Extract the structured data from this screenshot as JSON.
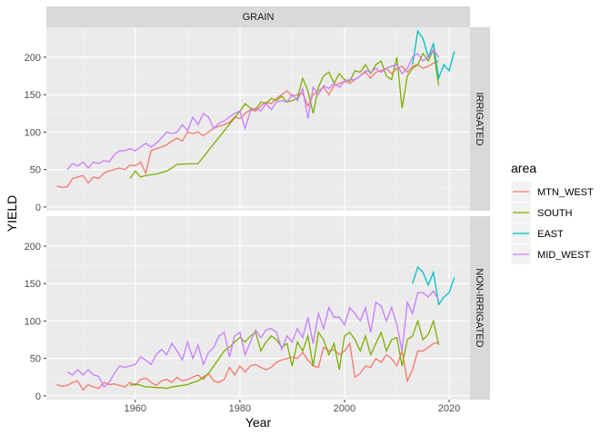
{
  "chart_data": {
    "type": "line",
    "facet_column": "GRAIN",
    "facet_rows": [
      "IRRIGATED",
      "NON-IRRIGATED"
    ],
    "xlabel": "Year",
    "ylabel": "YIELD",
    "xlim": [
      1943,
      2024
    ],
    "ylim": [
      -5,
      240
    ],
    "x_ticks": [
      1960,
      1980,
      2000,
      2020
    ],
    "y_ticks": [
      0,
      50,
      100,
      150,
      200
    ],
    "grid": true,
    "legend_title": "area",
    "legend_position": "right",
    "series_names": [
      "MTN_WEST",
      "SOUTH",
      "EAST",
      "MID_WEST"
    ],
    "colors": {
      "MTN_WEST": "#F8766D",
      "SOUTH": "#7CAE00",
      "EAST": "#00BFC4",
      "MID_WEST": "#C77CFF"
    },
    "panels": [
      {
        "row": "IRRIGATED",
        "series": [
          {
            "name": "MTN_WEST",
            "x": [
              1945,
              1946,
              1947,
              1948,
              1949,
              1950,
              1951,
              1952,
              1953,
              1954,
              1955,
              1956,
              1957,
              1958,
              1959,
              1960,
              1961,
              1962,
              1963,
              1964,
              1965,
              1966,
              1967,
              1968,
              1969,
              1970,
              1971,
              1972,
              1973,
              1974,
              1975,
              1976,
              1977,
              1978,
              1979,
              1980,
              1981,
              1982,
              1983,
              1984,
              1985,
              1986,
              1987,
              1988,
              1989,
              1990,
              1991,
              1992,
              1993,
              1994,
              1995,
              1996,
              1997,
              1998,
              1999,
              2000,
              2001,
              2002,
              2003,
              2004,
              2005,
              2006,
              2007,
              2008,
              2009,
              2010,
              2011,
              2012,
              2013,
              2014,
              2015,
              2016,
              2017,
              2018
            ],
            "y": [
              28,
              26,
              27,
              38,
              40,
              42,
              32,
              40,
              38,
              45,
              48,
              50,
              52,
              50,
              56,
              55,
              60,
              45,
              75,
              78,
              80,
              83,
              88,
              92,
              88,
              100,
              98,
              100,
              95,
              100,
              105,
              108,
              110,
              113,
              120,
              118,
              125,
              130,
              128,
              135,
              140,
              138,
              145,
              150,
              155,
              148,
              150,
              152,
              135,
              150,
              155,
              160,
              150,
              162,
              165,
              168,
              165,
              170,
              175,
              180,
              172,
              180,
              182,
              185,
              178,
              185,
              188,
              180,
              188,
              190,
              185,
              188,
              192,
              195
            ]
          },
          {
            "name": "SOUTH",
            "x": [
              1959,
              1960,
              1961,
              1962,
              1963,
              1964,
              1965,
              1966,
              1967,
              1968,
              1972,
              1980,
              1981,
              1982,
              1983,
              1984,
              1985,
              1986,
              1987,
              1988,
              1989,
              1990,
              1991,
              1992,
              1993,
              1994,
              1995,
              1996,
              1997,
              1998,
              1999,
              2000,
              2001,
              2002,
              2003,
              2004,
              2005,
              2006,
              2007,
              2008,
              2009,
              2010,
              2011,
              2012,
              2013,
              2014,
              2015,
              2016,
              2017,
              2018
            ],
            "y": [
              38,
              48,
              40,
              42,
              43,
              44,
              46,
              48,
              52,
              57,
              58,
              128,
              138,
              132,
              130,
              140,
              138,
              145,
              142,
              148,
              140,
              142,
              145,
              172,
              155,
              125,
              160,
              175,
              180,
              165,
              178,
              170,
              168,
              182,
              180,
              190,
              178,
              190,
              195,
              175,
              170,
              200,
              132,
              175,
              185,
              190,
              205,
              195,
              210,
              162
            ]
          },
          {
            "name": "EAST",
            "x": [
              2013,
              2014,
              2015,
              2016,
              2017,
              2018,
              2019,
              2020,
              2021
            ],
            "y": [
              190,
              235,
              225,
              200,
              218,
              172,
              190,
              182,
              208
            ]
          },
          {
            "name": "MID_WEST",
            "x": [
              1947,
              1948,
              1949,
              1950,
              1951,
              1952,
              1953,
              1954,
              1955,
              1956,
              1957,
              1958,
              1959,
              1960,
              1961,
              1962,
              1963,
              1964,
              1965,
              1966,
              1967,
              1968,
              1969,
              1970,
              1971,
              1972,
              1973,
              1974,
              1975,
              1976,
              1977,
              1978,
              1979,
              1980,
              1981,
              1982,
              1983,
              1984,
              1985,
              1986,
              1987,
              1988,
              1989,
              1990,
              1991,
              1992,
              1993,
              1994,
              1995,
              1996,
              1997,
              1998,
              1999,
              2000,
              2001,
              2002,
              2003,
              2004,
              2005,
              2006,
              2007,
              2008,
              2009,
              2010,
              2011,
              2012,
              2013,
              2014,
              2015,
              2016,
              2017,
              2018
            ],
            "y": [
              50,
              58,
              55,
              60,
              52,
              60,
              58,
              62,
              60,
              70,
              75,
              75,
              78,
              75,
              80,
              85,
              80,
              85,
              92,
              100,
              98,
              100,
              110,
              102,
              120,
              110,
              125,
              120,
              105,
              112,
              115,
              120,
              125,
              128,
              105,
              128,
              132,
              128,
              138,
              130,
              140,
              142,
              140,
              150,
              142,
              158,
              118,
              160,
              150,
              162,
              158,
              165,
              160,
              168,
              170,
              170,
              175,
              182,
              180,
              185,
              180,
              185,
              188,
              190,
              178,
              185,
              200,
              205,
              195,
              200,
              210,
              200
            ]
          }
        ]
      },
      {
        "row": "NON-IRRIGATED",
        "series": [
          {
            "name": "MTN_WEST",
            "x": [
              1945,
              1946,
              1947,
              1948,
              1949,
              1950,
              1951,
              1952,
              1953,
              1954,
              1955,
              1956,
              1957,
              1958,
              1959,
              1960,
              1961,
              1962,
              1963,
              1964,
              1965,
              1966,
              1967,
              1968,
              1969,
              1970,
              1971,
              1972,
              1973,
              1974,
              1975,
              1976,
              1977,
              1978,
              1979,
              1980,
              1981,
              1982,
              1983,
              1984,
              1985,
              1986,
              1987,
              1988,
              1989,
              1990,
              1991,
              1992,
              1993,
              1994,
              1995,
              1996,
              1997,
              1998,
              1999,
              2000,
              2001,
              2002,
              2003,
              2004,
              2005,
              2006,
              2007,
              2008,
              2009,
              2010,
              2011,
              2012,
              2013,
              2014,
              2015,
              2016,
              2017,
              2018
            ],
            "y": [
              15,
              13,
              14,
              18,
              20,
              8,
              15,
              12,
              10,
              18,
              15,
              16,
              14,
              12,
              18,
              14,
              22,
              24,
              18,
              14,
              20,
              22,
              18,
              25,
              20,
              22,
              25,
              28,
              22,
              30,
              20,
              18,
              22,
              38,
              28,
              40,
              32,
              40,
              42,
              38,
              35,
              38,
              45,
              48,
              50,
              52,
              50,
              58,
              48,
              40,
              38,
              65,
              60,
              62,
              55,
              60,
              70,
              25,
              30,
              40,
              38,
              50,
              45,
              55,
              50,
              40,
              60,
              20,
              35,
              60,
              60,
              65,
              70,
              72
            ]
          },
          {
            "name": "SOUTH",
            "x": [
              1959,
              1960,
              1961,
              1962,
              1963,
              1964,
              1965,
              1966,
              1967,
              1968,
              1969,
              1970,
              1971,
              1972,
              1973,
              1974,
              1975,
              1976,
              1977,
              1978,
              1979,
              1980,
              1981,
              1982,
              1983,
              1984,
              1985,
              1986,
              1987,
              1988,
              1989,
              1990,
              1991,
              1992,
              1993,
              1994,
              1995,
              1996,
              1997,
              1998,
              1999,
              2000,
              2001,
              2002,
              2003,
              2004,
              2005,
              2006,
              2007,
              2008,
              2009,
              2010,
              2011,
              2012,
              2013,
              2014,
              2015,
              2016,
              2017,
              2018
            ],
            "y": [
              14,
              16,
              14,
              12,
              12,
              11,
              11,
              10,
              12,
              13,
              14,
              15,
              18,
              20,
              25,
              30,
              40,
              50,
              60,
              65,
              72,
              78,
              72,
              80,
              85,
              60,
              72,
              80,
              75,
              65,
              70,
              40,
              72,
              60,
              80,
              40,
              85,
              75,
              55,
              70,
              35,
              80,
              85,
              75,
              60,
              80,
              55,
              70,
              85,
              60,
              75,
              78,
              40,
              75,
              80,
              100,
              75,
              82,
              100,
              68
            ]
          },
          {
            "name": "EAST",
            "x": [
              2013,
              2014,
              2015,
              2016,
              2017,
              2018,
              2019,
              2020,
              2021
            ],
            "y": [
              150,
              172,
              165,
              148,
              165,
              122,
              132,
              138,
              158
            ]
          },
          {
            "name": "MID_WEST",
            "x": [
              1947,
              1948,
              1949,
              1950,
              1951,
              1952,
              1953,
              1954,
              1955,
              1956,
              1957,
              1958,
              1959,
              1960,
              1961,
              1962,
              1963,
              1964,
              1965,
              1966,
              1967,
              1968,
              1969,
              1970,
              1971,
              1972,
              1973,
              1974,
              1975,
              1976,
              1977,
              1978,
              1979,
              1980,
              1981,
              1982,
              1983,
              1984,
              1985,
              1986,
              1987,
              1988,
              1989,
              1990,
              1991,
              1992,
              1993,
              1994,
              1995,
              1996,
              1997,
              1998,
              1999,
              2000,
              2001,
              2002,
              2003,
              2004,
              2005,
              2006,
              2007,
              2008,
              2009,
              2010,
              2011,
              2012,
              2013,
              2014,
              2015,
              2016,
              2017,
              2018
            ],
            "y": [
              32,
              28,
              35,
              28,
              35,
              28,
              26,
              12,
              18,
              30,
              40,
              38,
              40,
              42,
              52,
              48,
              42,
              55,
              62,
              55,
              70,
              60,
              48,
              72,
              50,
              68,
              42,
              58,
              65,
              80,
              85,
              52,
              80,
              85,
              55,
              72,
              88,
              78,
              88,
              90,
              85,
              62,
              80,
              72,
              90,
              78,
              105,
              70,
              110,
              90,
              118,
              105,
              105,
              95,
              118,
              110,
              100,
              118,
              85,
              125,
              120,
              100,
              118,
              95,
              60,
              125,
              110,
              138,
              138,
              132,
              140,
              128
            ]
          }
        ]
      }
    ]
  }
}
